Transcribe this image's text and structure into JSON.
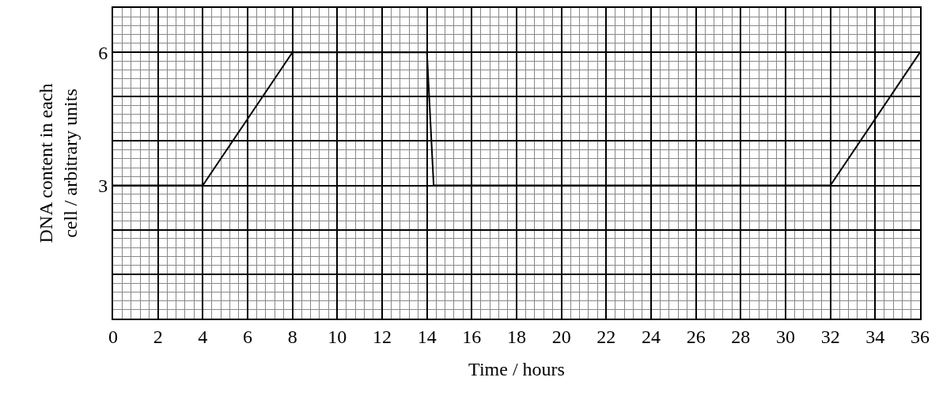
{
  "chart_data": {
    "type": "line",
    "xlabel": "Time / hours",
    "ylabel": "DNA content in each\ncell / arbitrary units",
    "x": [
      0,
      4,
      8,
      14,
      14.3,
      32,
      36
    ],
    "series": [
      {
        "color": "#000000",
        "values": [
          3,
          3,
          6,
          6,
          3,
          3,
          6
        ]
      }
    ],
    "xlim": [
      0,
      36
    ],
    "xticks": [
      0,
      2,
      4,
      6,
      8,
      10,
      12,
      14,
      16,
      18,
      20,
      22,
      24,
      26,
      28,
      30,
      32,
      34,
      36
    ],
    "ylim": [
      0,
      7
    ],
    "yticks": [
      {
        "value": 0,
        "label": null
      },
      {
        "value": 1,
        "label": null
      },
      {
        "value": 2,
        "label": null
      },
      3,
      {
        "value": 4,
        "label": null
      },
      {
        "value": 5,
        "label": null
      },
      6,
      {
        "value": 7,
        "label": null
      }
    ],
    "grid": true,
    "legend": false,
    "marker": "none",
    "line_style": "solid"
  }
}
